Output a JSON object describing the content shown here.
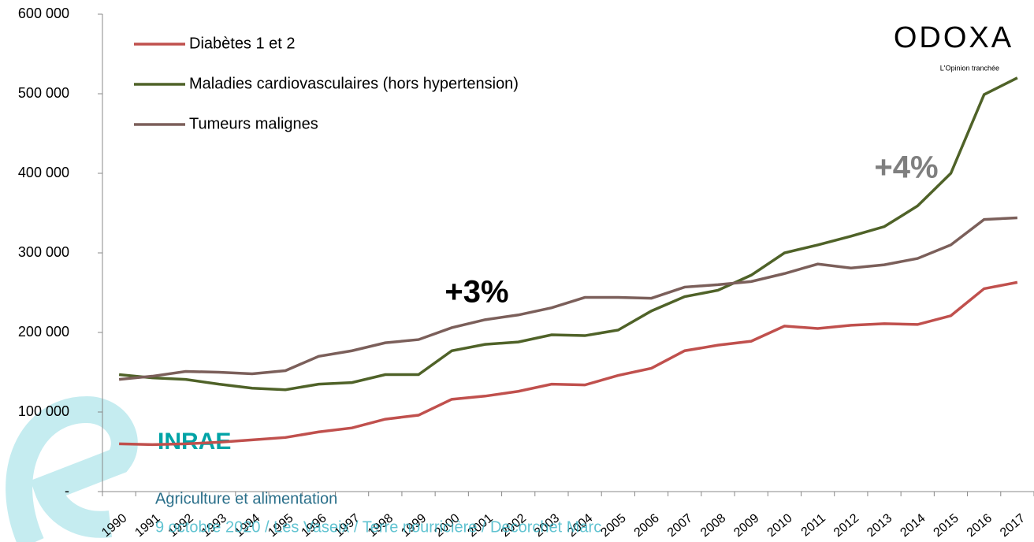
{
  "chart_data": {
    "type": "line",
    "categories": [
      "1990",
      "1991",
      "1992",
      "1993",
      "1994",
      "1995",
      "1996",
      "1997",
      "1998",
      "1999",
      "2000",
      "2001",
      "2002",
      "2003",
      "2004",
      "2005",
      "2006",
      "2007",
      "2008",
      "2009",
      "2010",
      "2011",
      "2012",
      "2013",
      "2014",
      "2015",
      "2016",
      "2017"
    ],
    "series": [
      {
        "name": "Diabètes 1 et 2",
        "color": "#c0504d",
        "values": [
          60000,
          59000,
          60000,
          62000,
          65000,
          68000,
          75000,
          80000,
          91000,
          96000,
          116000,
          120000,
          126000,
          135000,
          134000,
          146000,
          155000,
          177000,
          184000,
          189000,
          208000,
          205000,
          209000,
          211000,
          210000,
          221000,
          255000,
          263000
        ]
      },
      {
        "name": "Maladies cardiovasculaires (hors hypertension)",
        "color": "#4f6228",
        "values": [
          147000,
          143000,
          141000,
          135000,
          130000,
          128000,
          135000,
          137000,
          147000,
          147000,
          177000,
          185000,
          188000,
          197000,
          196000,
          203000,
          227000,
          245000,
          253000,
          272000,
          300000,
          310000,
          321000,
          333000,
          359000,
          400000,
          499000,
          520000
        ]
      },
      {
        "name": "Tumeurs malignes",
        "color": "#7b5f5a",
        "values": [
          141000,
          145000,
          151000,
          150000,
          148000,
          152000,
          170000,
          177000,
          187000,
          191000,
          206000,
          216000,
          222000,
          231000,
          244000,
          244000,
          243000,
          257000,
          260000,
          264000,
          274000,
          286000,
          281000,
          285000,
          293000,
          310000,
          342000,
          344000
        ]
      }
    ],
    "ylim": [
      0,
      600000
    ],
    "yticks": [
      {
        "value": 0,
        "label": "-"
      },
      {
        "value": 100000,
        "label": "100 000"
      },
      {
        "value": 200000,
        "label": "200 000"
      },
      {
        "value": 300000,
        "label": "300 000"
      },
      {
        "value": 400000,
        "label": "400 000"
      },
      {
        "value": 500000,
        "label": "500 000"
      },
      {
        "value": 600000,
        "label": "600 000"
      }
    ],
    "annotations": [
      "+3%",
      "+4%"
    ]
  },
  "logos": {
    "odoxa": "ODOXA",
    "odoxa_tagline": "L'Opinion tranchée",
    "inrae": "INRAE"
  },
  "footer": {
    "line1": "Agriculture et alimentation",
    "line2": "9 octobre 2020 / Les Vaseix / Terre nourricière / Decorchet Marc"
  }
}
